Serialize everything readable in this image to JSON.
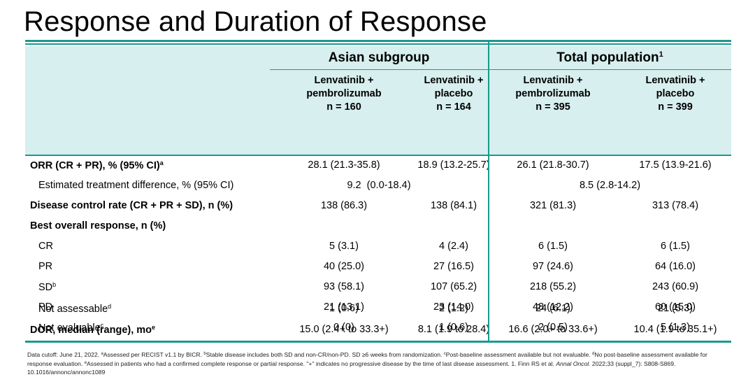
{
  "title": "Response and Duration of Response",
  "groups": {
    "asian": "Asian subgroup",
    "total": "Total population",
    "total_sup": "1"
  },
  "columns": [
    {
      "line1": "Lenvatinib +",
      "line2": "pembrolizumab",
      "line3": "n = 160"
    },
    {
      "line1": "Lenvatinib +",
      "line2": "placebo",
      "line3": "n = 164"
    },
    {
      "line1": "Lenvatinib +",
      "line2": "pembrolizumab",
      "line3": "n = 395"
    },
    {
      "line1": "Lenvatinib +",
      "line2": "placebo",
      "line3": "n = 399"
    }
  ],
  "rows": [
    {
      "label": "ORR (CR + PR), % (95% CI)",
      "sup": "a",
      "values": [
        "28.1 (21.3-35.8)",
        "18.9 (13.2-25.7)",
        "26.1 (21.8-30.7)",
        "17.5 (13.9-21.6)"
      ]
    },
    {
      "label": "Estimated treatment difference, % (95% CI)",
      "asian_span": "9.2  (0.0-18.4)",
      "total_span": "8.5 (2.8-14.2)"
    },
    {
      "label": "Disease control rate (CR + PR + SD), n (%)",
      "values": [
        "138 (86.3)",
        "138 (84.1)",
        "321 (81.3)",
        "313 (78.4)"
      ]
    },
    {
      "label": "Best overall response, n (%)"
    },
    {
      "label": "CR",
      "values": [
        "5 (3.1)",
        "4 (2.4)",
        "6 (1.5)",
        "6 (1.5)"
      ]
    },
    {
      "label": "PR",
      "values": [
        "40 (25.0)",
        "27 (16.5)",
        "97 (24.6)",
        "64 (16.0)"
      ]
    },
    {
      "label": "SD",
      "sup": "b",
      "values": [
        "93 (58.1)",
        "107 (65.2)",
        "218 (55.2)",
        "243 (60.9)"
      ]
    },
    {
      "label": "PD",
      "values": [
        "21 (13.1)",
        "23 (14.0)",
        "48 (12.2)",
        "60 (15.0)"
      ]
    },
    {
      "label": "Not evaluable",
      "sup": "c",
      "values": [
        "0 (0)",
        "1 (0.6)",
        "2 (0.5)",
        "5 (1.3)"
      ]
    },
    {
      "label": "Not assessable",
      "sup": "d",
      "values": [
        "1 (0.6)",
        "2 (1.2)",
        "24 (6.1)",
        "21 (5.3)"
      ]
    },
    {
      "label": "DOR, median (range), mo",
      "sup": "e",
      "values": [
        "15.0 (2.4+ to 33.3+)",
        "8.1 (1.9 to 28.4)",
        "16.6 (2.0+ to 33.6+)",
        "10.4 (1.9 to 35.1+)"
      ]
    }
  ],
  "footnote": {
    "part1": "Data cutoff: June 21, 2022. ",
    "a": "a",
    "part2": "Assessed per RECIST v1.1 by BICR. ",
    "b": "b",
    "part3": "Stable disease includes both SD and non-CR/non-PD. SD ≥6 weeks from randomization. ",
    "c": "c",
    "part4": "Post-baseline assessment available but not evaluable. ",
    "d": "d",
    "part5": "No post-baseline assessment available for response evaluation. ",
    "e": "e",
    "part6": "Assessed in patients who had a confirmed complete response or partial response. \"+\" indicates no progressive disease by the time of last disease assessment. 1. Finn RS et al. ",
    "journal": "Annal Oncol.",
    "part7": " 2022;33 (suppl_7): S808-S869. 10.1016/annonc/annonc1089"
  }
}
